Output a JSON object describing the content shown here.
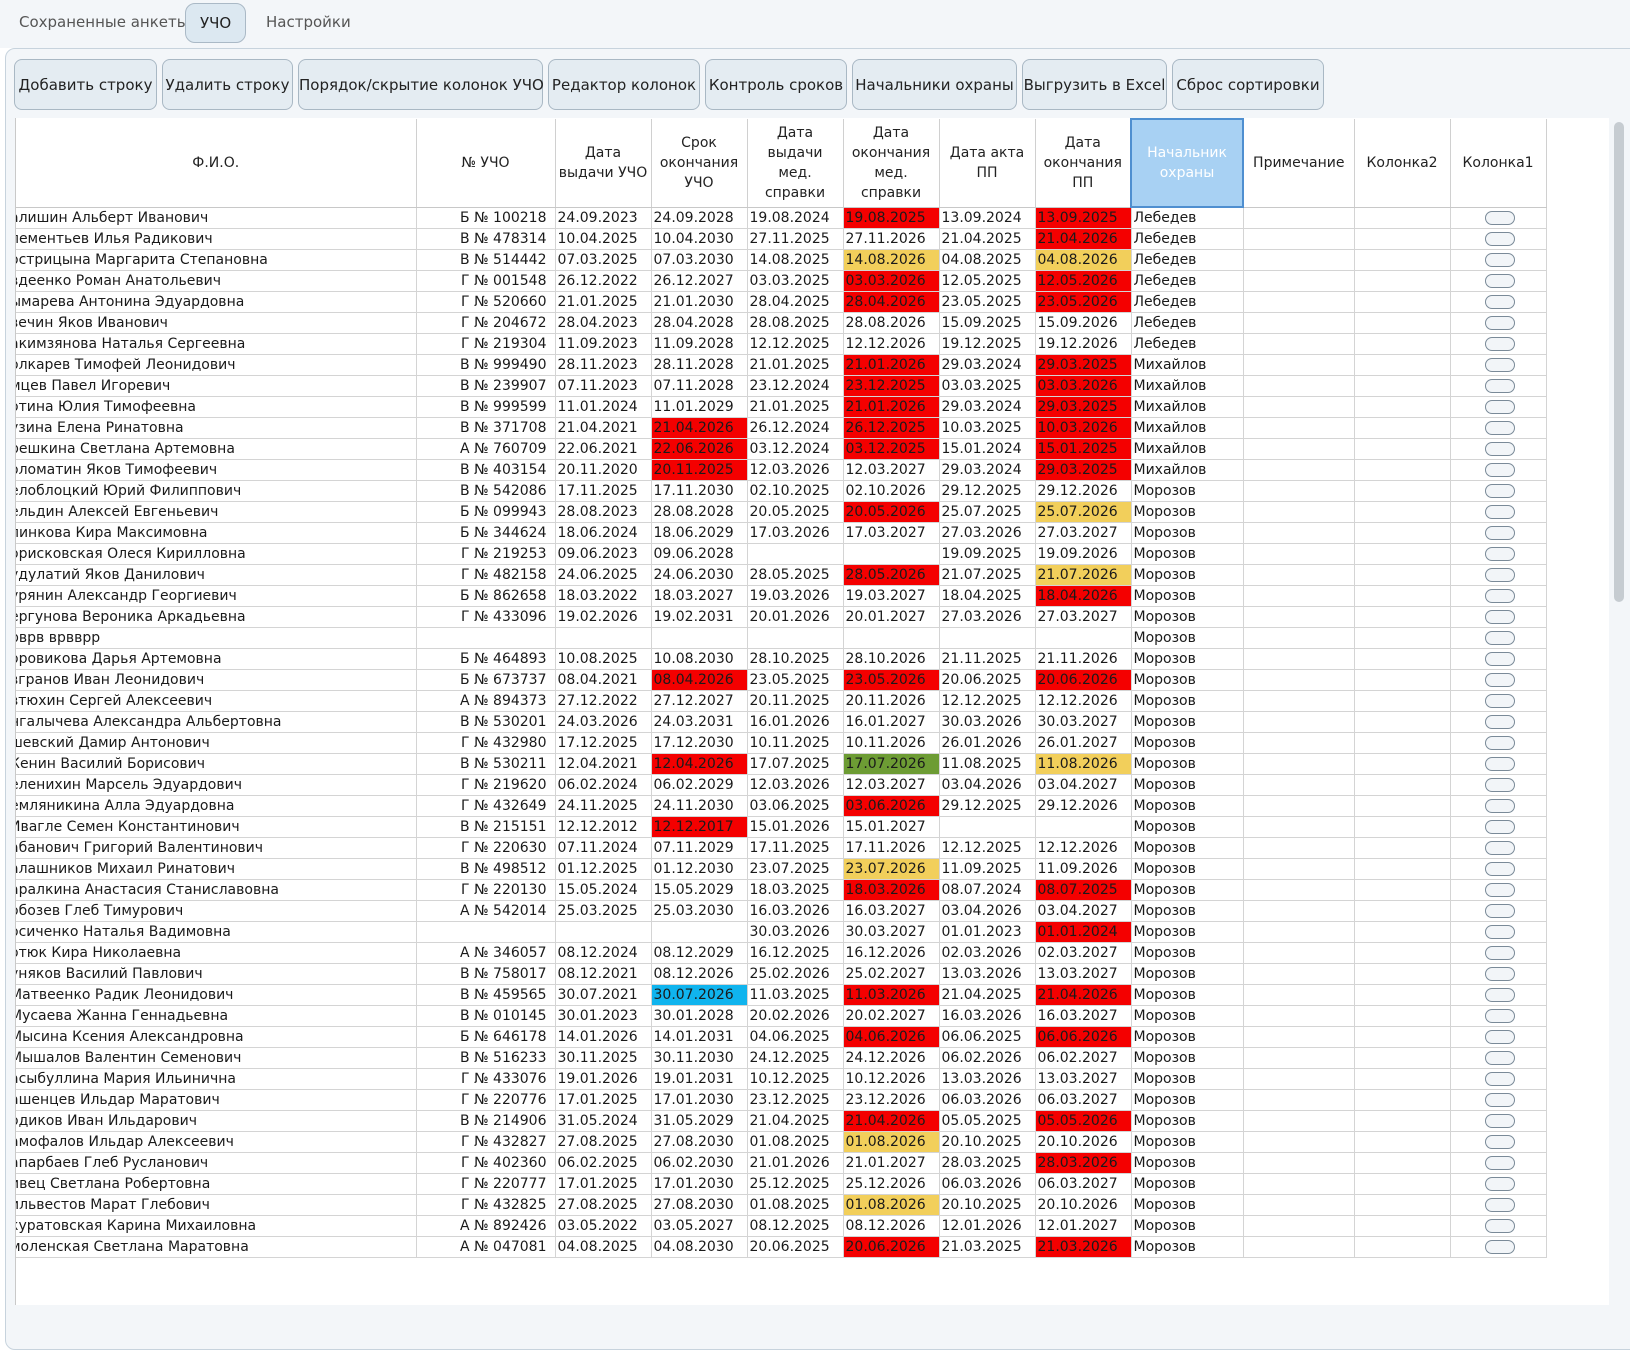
{
  "tabs": [
    {
      "label": "Сохраненные анкеты",
      "active": false
    },
    {
      "label": "УЧО",
      "active": true
    },
    {
      "label": "Настройки",
      "active": false
    }
  ],
  "toolbar": [
    "Добавить строку",
    "Удалить строку",
    "Порядок/скрытие колонок УЧО",
    "Редактор колонок",
    "Контроль сроков",
    "Начальники охраны",
    "Выгрузить в Excel",
    "Сброс сортировки"
  ],
  "columns": [
    "Ф.И.О.",
    "№ УЧО",
    "Дата выдачи УЧО",
    "Срок окончания УЧО",
    "Дата выдачи мед. справки",
    "Дата окончания мед. справки",
    "Дата акта ПП",
    "Дата окончания ПП",
    "Начальник охраны",
    "Примечание",
    "Колонка2",
    "Колонка1"
  ],
  "selected_column": "Начальник охраны",
  "status_colors": {
    "red": "#f40000",
    "yellow": "#f2cf5b",
    "green": "#6d9c34",
    "blue": "#10b4ee"
  },
  "rows": [
    [
      "алишин Альберт Иванович",
      "Б № 100218",
      "24.09.2023",
      "24.09.2028",
      "19.08.2024",
      "19.08.2025",
      "13.09.2024",
      "13.09.2025",
      "Лебедев",
      "",
      "",
      "r",
      "r"
    ],
    [
      "лементьев Илья Радикович",
      "В № 478314",
      "10.04.2025",
      "10.04.2030",
      "27.11.2025",
      "27.11.2026",
      "21.04.2025",
      "21.04.2026",
      "Лебедев",
      "",
      "",
      "",
      "r"
    ],
    [
      "острицына Маргарита Степановна",
      "В № 514442",
      "07.03.2025",
      "07.03.2030",
      "14.08.2025",
      "14.08.2026",
      "04.08.2025",
      "04.08.2026",
      "Лебедев",
      "",
      "",
      "y",
      "y"
    ],
    [
      "вдеенко Роман Анатольевич",
      "Г № 001548",
      "26.12.2022",
      "26.12.2027",
      "03.03.2025",
      "03.03.2026",
      "12.05.2025",
      "12.05.2026",
      "Лебедев",
      "",
      "",
      "r",
      "r"
    ],
    [
      "ымарева Антонина Эдуардовна",
      "Г № 520660",
      "21.01.2025",
      "21.01.2030",
      "28.04.2025",
      "28.04.2026",
      "23.05.2025",
      "23.05.2026",
      "Лебедев",
      "",
      "",
      "r",
      "r"
    ],
    [
      "вечин Яков Иванович",
      "Г № 204672",
      "28.04.2023",
      "28.04.2028",
      "28.08.2025",
      "28.08.2026",
      "15.09.2025",
      "15.09.2026",
      "Лебедев",
      "",
      "",
      "",
      ""
    ],
    [
      "акимзянова Наталья Сергеевна",
      "Г № 219304",
      "11.09.2023",
      "11.09.2028",
      "12.12.2025",
      "12.12.2026",
      "19.12.2025",
      "19.12.2026",
      "Лебедев",
      "",
      "",
      "",
      ""
    ],
    [
      "олкарев Тимофей Леонидович",
      "В № 999490",
      "28.11.2023",
      "28.11.2028",
      "21.01.2025",
      "21.01.2026",
      "29.03.2024",
      "29.03.2025",
      "Михайлов",
      "",
      "",
      "r",
      "r"
    ],
    [
      "мцев Павел Игоревич",
      "В № 239907",
      "07.11.2023",
      "07.11.2028",
      "23.12.2024",
      "23.12.2025",
      "03.03.2025",
      "03.03.2026",
      "Михайлов",
      "",
      "",
      "r",
      "r"
    ],
    [
      "отина Юлия Тимофеевна",
      "В № 999599",
      "11.01.2024",
      "11.01.2029",
      "21.01.2025",
      "21.01.2026",
      "29.03.2024",
      "29.03.2025",
      "Михайлов",
      "",
      "",
      "r",
      "r"
    ],
    [
      "узина Елена Ринатовна",
      "В № 371708",
      "21.04.2021",
      "21.04.2026",
      "26.12.2024",
      "26.12.2025",
      "10.03.2025",
      "10.03.2026",
      "Михайлов",
      "r",
      "",
      "r",
      "r"
    ],
    [
      "решкина Светлана Артемовна",
      "А № 760709",
      "22.06.2021",
      "22.06.2026",
      "03.12.2024",
      "03.12.2025",
      "15.01.2024",
      "15.01.2025",
      "Михайлов",
      "r",
      "",
      "r",
      "r"
    ],
    [
      "оломатин Яков Тимофеевич",
      "В № 403154",
      "20.11.2020",
      "20.11.2025",
      "12.03.2026",
      "12.03.2027",
      "29.03.2024",
      "29.03.2025",
      "Михайлов",
      "r",
      "",
      "",
      "r"
    ],
    [
      "елоблоцкий Юрий Филиппович",
      "В № 542086",
      "17.11.2025",
      "17.11.2030",
      "02.10.2025",
      "02.10.2026",
      "29.12.2025",
      "29.12.2026",
      "Морозов",
      "",
      "",
      "",
      ""
    ],
    [
      "ельдин Алексей Евгеньевич",
      "Б № 099943",
      "28.08.2023",
      "28.08.2028",
      "20.05.2025",
      "20.05.2026",
      "25.07.2025",
      "25.07.2026",
      "Морозов",
      "",
      "",
      "r",
      "y"
    ],
    [
      "линкова Кира Максимовна",
      "Б № 344624",
      "18.06.2024",
      "18.06.2029",
      "17.03.2026",
      "17.03.2027",
      "27.03.2026",
      "27.03.2027",
      "Морозов",
      "",
      "",
      "",
      ""
    ],
    [
      "орисковская Олеся Кирилловна",
      "Г № 219253",
      "09.06.2023",
      "09.06.2028",
      "",
      "",
      "19.09.2025",
      "19.09.2026",
      "Морозов",
      "",
      "",
      "",
      ""
    ],
    [
      "удулатий Яков Данилович",
      "Г № 482158",
      "24.06.2025",
      "24.06.2030",
      "28.05.2025",
      "28.05.2026",
      "21.07.2025",
      "21.07.2026",
      "Морозов",
      "",
      "",
      "r",
      "y"
    ],
    [
      "урянин Александр Георгиевич",
      "Б № 862658",
      "18.03.2022",
      "18.03.2027",
      "19.03.2026",
      "19.03.2027",
      "18.04.2025",
      "18.04.2026",
      "Морозов",
      "",
      "",
      "",
      "r"
    ],
    [
      "ергунова Вероника Аркадьевна",
      "Г № 433096",
      "19.02.2026",
      "19.02.2031",
      "20.01.2026",
      "20.01.2027",
      "27.03.2026",
      "27.03.2027",
      "Морозов",
      "",
      "",
      "",
      ""
    ],
    [
      "рврв врвврр",
      "",
      "",
      "",
      "",
      "",
      "",
      "",
      "Морозов",
      "",
      "",
      "",
      ""
    ],
    [
      "оровикова Дарья Артемовна",
      "Б № 464893",
      "10.08.2025",
      "10.08.2030",
      "28.10.2025",
      "28.10.2026",
      "21.11.2025",
      "21.11.2026",
      "Морозов",
      "",
      "",
      "",
      ""
    ],
    [
      "вгранов Иван Леонидович",
      "Б № 673737",
      "08.04.2021",
      "08.04.2026",
      "23.05.2025",
      "23.05.2026",
      "20.06.2025",
      "20.06.2026",
      "Морозов",
      "r",
      "",
      "r",
      "r"
    ],
    [
      "втюхин Сергей Алексеевич",
      "А № 894373",
      "27.12.2022",
      "27.12.2027",
      "20.11.2025",
      "20.11.2026",
      "12.12.2025",
      "12.12.2026",
      "Морозов",
      "",
      "",
      "",
      ""
    ],
    [
      "нгалычева Александра Альбертовна",
      "В № 530201",
      "24.03.2026",
      "24.03.2031",
      "16.01.2026",
      "16.01.2027",
      "30.03.2026",
      "30.03.2027",
      "Морозов",
      "",
      "",
      "",
      ""
    ],
    [
      "шевский Дамир Антонович",
      "Г № 432980",
      "17.12.2025",
      "17.12.2030",
      "10.11.2025",
      "10.11.2026",
      "26.01.2026",
      "26.01.2027",
      "Морозов",
      "",
      "",
      "",
      ""
    ],
    [
      "Кенин Василий Борисович",
      "В № 530211",
      "12.04.2021",
      "12.04.2026",
      "17.07.2025",
      "17.07.2026",
      "11.08.2025",
      "11.08.2026",
      "Морозов",
      "r",
      "",
      "g",
      "y"
    ],
    [
      "еленихин Марсель Эдуардович",
      "Г № 219620",
      "06.02.2024",
      "06.02.2029",
      "12.03.2026",
      "12.03.2027",
      "03.04.2026",
      "03.04.2027",
      "Морозов",
      "",
      "",
      "",
      ""
    ],
    [
      "емляникина Алла Эдуардовна",
      "Г № 432649",
      "24.11.2025",
      "24.11.2030",
      "03.06.2025",
      "03.06.2026",
      "29.12.2025",
      "29.12.2026",
      "Морозов",
      "",
      "",
      "r",
      ""
    ],
    [
      "Ивагле Семен Константинович",
      "В № 215151",
      "12.12.2012",
      "12.12.2017",
      "15.01.2026",
      "15.01.2027",
      "",
      "",
      "Морозов",
      "r",
      "",
      "",
      ""
    ],
    [
      "абанович Григорий Валентинович",
      "Г № 220630",
      "07.11.2024",
      "07.11.2029",
      "17.11.2025",
      "17.11.2026",
      "12.12.2025",
      "12.12.2026",
      "Морозов",
      "",
      "",
      "",
      ""
    ],
    [
      "алашников Михаил Ринатович",
      "В № 498512",
      "01.12.2025",
      "01.12.2030",
      "23.07.2025",
      "23.07.2026",
      "11.09.2025",
      "11.09.2026",
      "Морозов",
      "",
      "",
      "y",
      ""
    ],
    [
      "аралкина Анастасия Станиславовна",
      "Г № 220130",
      "15.05.2024",
      "15.05.2029",
      "18.03.2025",
      "18.03.2026",
      "08.07.2024",
      "08.07.2025",
      "Морозов",
      "",
      "",
      "r",
      "r"
    ],
    [
      "обозев Глеб Тимурович",
      "А № 542014",
      "25.03.2025",
      "25.03.2030",
      "16.03.2026",
      "16.03.2027",
      "03.04.2026",
      "03.04.2027",
      "Морозов",
      "",
      "",
      "",
      ""
    ],
    [
      "осиченко Наталья Вадимовна",
      "",
      "",
      "",
      "30.03.2026",
      "30.03.2027",
      "01.01.2023",
      "01.01.2024",
      "Морозов",
      "",
      "",
      "",
      "r"
    ],
    [
      "отюк Кира Николаевна",
      "А № 346057",
      "08.12.2024",
      "08.12.2029",
      "16.12.2025",
      "16.12.2026",
      "02.03.2026",
      "02.03.2027",
      "Морозов",
      "",
      "",
      "",
      ""
    ],
    [
      "уняков Василий Павлович",
      "В № 758017",
      "08.12.2021",
      "08.12.2026",
      "25.02.2026",
      "25.02.2027",
      "13.03.2026",
      "13.03.2027",
      "Морозов",
      "",
      "",
      "",
      ""
    ],
    [
      "Матвеенко Радик Леонидович",
      "В № 459565",
      "30.07.2021",
      "30.07.2026",
      "11.03.2025",
      "11.03.2026",
      "21.04.2025",
      "21.04.2026",
      "Морозов",
      "b",
      "",
      "r",
      "r"
    ],
    [
      "Мусаева Жанна Геннадьевна",
      "В № 010145",
      "30.01.2023",
      "30.01.2028",
      "20.02.2026",
      "20.02.2027",
      "16.03.2026",
      "16.03.2027",
      "Морозов",
      "",
      "",
      "",
      ""
    ],
    [
      "Мысина Ксения Александровна",
      "Б № 646178",
      "14.01.2026",
      "14.01.2031",
      "04.06.2025",
      "04.06.2026",
      "06.06.2025",
      "06.06.2026",
      "Морозов",
      "",
      "",
      "r",
      "r"
    ],
    [
      "Мышалов Валентин Семенович",
      "В № 516233",
      "30.11.2025",
      "30.11.2030",
      "24.12.2025",
      "24.12.2026",
      "06.02.2026",
      "06.02.2027",
      "Морозов",
      "",
      "",
      "",
      ""
    ],
    [
      "асыбуллина Мария Ильинична",
      "Г № 433076",
      "19.01.2026",
      "19.01.2031",
      "10.12.2025",
      "10.12.2026",
      "13.03.2026",
      "13.03.2027",
      "Морозов",
      "",
      "",
      "",
      ""
    ],
    [
      "ашенцев Ильдар Маратович",
      "Г № 220776",
      "17.01.2025",
      "17.01.2030",
      "23.12.2025",
      "23.12.2026",
      "06.03.2026",
      "06.03.2027",
      "Морозов",
      "",
      "",
      "",
      ""
    ],
    [
      "одиков Иван Ильдарович",
      "В № 214906",
      "31.05.2024",
      "31.05.2029",
      "21.04.2025",
      "21.04.2026",
      "05.05.2025",
      "05.05.2026",
      "Морозов",
      "",
      "",
      "r",
      "r"
    ],
    [
      "амофалов Ильдар Алексеевич",
      "Г № 432827",
      "27.08.2025",
      "27.08.2030",
      "01.08.2025",
      "01.08.2026",
      "20.10.2025",
      "20.10.2026",
      "Морозов",
      "",
      "",
      "y",
      ""
    ],
    [
      "апарбаев Глеб Русланович",
      "Г № 402360",
      "06.02.2025",
      "06.02.2030",
      "21.01.2026",
      "21.01.2027",
      "28.03.2025",
      "28.03.2026",
      "Морозов",
      "",
      "",
      "",
      "r"
    ],
    [
      "ивец Светлана Робертовна",
      "Г № 220777",
      "17.01.2025",
      "17.01.2030",
      "25.12.2025",
      "25.12.2026",
      "06.03.2026",
      "06.03.2027",
      "Морозов",
      "",
      "",
      "",
      ""
    ],
    [
      "ильвестов Марат Глебович",
      "Г № 432825",
      "27.08.2025",
      "27.08.2030",
      "01.08.2025",
      "01.08.2026",
      "20.10.2025",
      "20.10.2026",
      "Морозов",
      "",
      "",
      "y",
      ""
    ],
    [
      "куратовская Карина Михаиловна",
      "А № 892426",
      "03.05.2022",
      "03.05.2027",
      "08.12.2025",
      "08.12.2026",
      "12.01.2026",
      "12.01.2027",
      "Морозов",
      "",
      "",
      "",
      ""
    ],
    [
      "моленская Светлана Маратовна",
      "А № 047081",
      "04.08.2025",
      "04.08.2030",
      "20.06.2025",
      "20.06.2026",
      "21.03.2025",
      "21.03.2026",
      "Морозов",
      "",
      "",
      "r",
      "r"
    ]
  ]
}
